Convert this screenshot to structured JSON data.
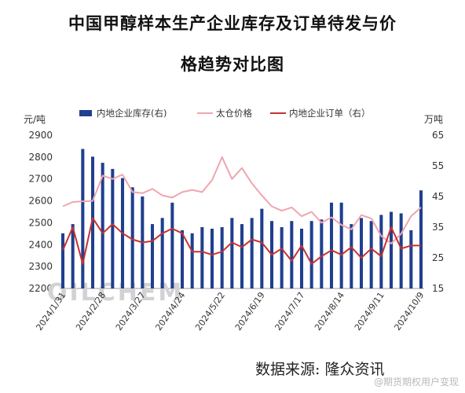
{
  "title_line1": "中国甲醇样本生产企业库存及订单待发与价",
  "title_line2": "格趋势对比图",
  "source": "数据来源:  隆众资讯",
  "watermark": "@期货期权用户变现",
  "brand_watermark": "OILCHEM",
  "chart_data": {
    "type": "bar",
    "left_unit": "元/吨",
    "right_unit": "万吨",
    "ylim_left": [
      2200,
      2900
    ],
    "yticks_left": [
      2200,
      2300,
      2400,
      2500,
      2600,
      2700,
      2800,
      2900
    ],
    "ylim_right": [
      15,
      65
    ],
    "yticks_right": [
      15,
      25,
      35,
      45,
      55,
      65
    ],
    "legend_position": "top",
    "x_tick_labels": [
      "2024/1/31",
      "2024/2/28",
      "2024/3/27",
      "2024/4/24",
      "2024/5/22",
      "2024/6/19",
      "2024/7/17",
      "2024/8/14",
      "2024/9/11",
      "2024/10/9"
    ],
    "x_tick_index": [
      0,
      4,
      8,
      12,
      16,
      20,
      24,
      28,
      32,
      36
    ],
    "x": [
      "2024/1/31",
      "2024/2/7",
      "2024/2/14",
      "2024/2/21",
      "2024/2/28",
      "2024/3/6",
      "2024/3/13",
      "2024/3/20",
      "2024/3/27",
      "2024/4/3",
      "2024/4/10",
      "2024/4/17",
      "2024/4/24",
      "2024/5/1",
      "2024/5/8",
      "2024/5/15",
      "2024/5/22",
      "2024/5/29",
      "2024/6/5",
      "2024/6/12",
      "2024/6/19",
      "2024/6/26",
      "2024/7/3",
      "2024/7/10",
      "2024/7/17",
      "2024/7/24",
      "2024/7/31",
      "2024/8/7",
      "2024/8/14",
      "2024/8/21",
      "2024/8/28",
      "2024/9/4",
      "2024/9/11",
      "2024/9/18",
      "2024/9/25",
      "2024/10/2",
      "2024/10/9"
    ],
    "series": [
      {
        "name": "内地企业库存(右)",
        "type": "bar",
        "axis": "right",
        "color": "#1f3f8f",
        "values": [
          33,
          36,
          60.5,
          58,
          56,
          54,
          51,
          48,
          45,
          36,
          38,
          43,
          34,
          33,
          35,
          34.5,
          35,
          38,
          36,
          38,
          41,
          37,
          35,
          37,
          34.5,
          37,
          37.5,
          43,
          43,
          36,
          38,
          37,
          39,
          40,
          39.5,
          34,
          47
        ]
      },
      {
        "name": "太仓价格",
        "type": "line",
        "axis": "left",
        "color": "#f0a5ae",
        "values": [
          2575,
          2595,
          2598,
          2600,
          2715,
          2700,
          2720,
          2640,
          2635,
          2655,
          2625,
          2615,
          2640,
          2650,
          2640,
          2695,
          2800,
          2700,
          2750,
          2680,
          2625,
          2575,
          2555,
          2570,
          2530,
          2550,
          2500,
          2525,
          2490,
          2470,
          2535,
          2520,
          2440,
          2405,
          2450,
          2530,
          2570
        ]
      },
      {
        "name": "内地企业订单（右）",
        "type": "line",
        "axis": "right",
        "color": "#c8312f",
        "values": [
          27.5,
          35,
          23,
          38,
          33,
          36,
          33,
          31,
          30,
          30.5,
          33,
          34.5,
          33,
          27,
          27,
          26,
          27,
          30,
          28.5,
          31,
          30,
          26,
          28,
          24,
          29,
          23,
          25.5,
          27.5,
          26,
          28.5,
          25,
          28,
          25.5,
          35,
          28,
          29,
          29
        ]
      }
    ]
  }
}
